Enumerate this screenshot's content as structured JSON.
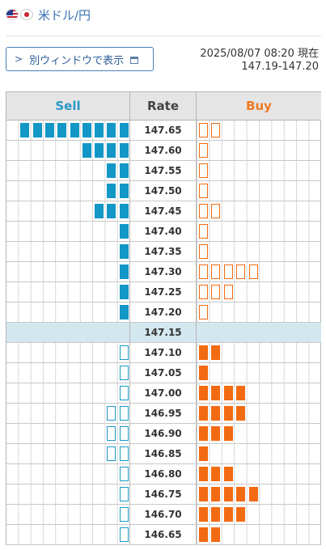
{
  "header": {
    "pair": "米ドル/円",
    "flags": [
      "us-flag-icon",
      "jp-flag-icon"
    ]
  },
  "toolbar": {
    "open_window_label": "別ウィンドウで表示"
  },
  "quote": {
    "timestamp": "2025/08/07 08:20 現在",
    "range": "147.19-147.20"
  },
  "board": {
    "headers": {
      "sell": "Sell",
      "rate": "Rate",
      "buy": "Buy"
    },
    "colors": {
      "sell": "#1297c6",
      "buy": "#f26a12",
      "current_row": "#d3e7ef"
    },
    "rows": [
      {
        "rate": "147.65",
        "sell": 9,
        "sell_style": "filled",
        "buy": 2,
        "buy_style": "outline"
      },
      {
        "rate": "147.60",
        "sell": 4,
        "sell_style": "filled",
        "buy": 1,
        "buy_style": "outline"
      },
      {
        "rate": "147.55",
        "sell": 2,
        "sell_style": "filled",
        "buy": 1,
        "buy_style": "outline"
      },
      {
        "rate": "147.50",
        "sell": 2,
        "sell_style": "filled",
        "buy": 1,
        "buy_style": "outline"
      },
      {
        "rate": "147.45",
        "sell": 3,
        "sell_style": "filled",
        "buy": 2,
        "buy_style": "outline"
      },
      {
        "rate": "147.40",
        "sell": 1,
        "sell_style": "filled",
        "buy": 1,
        "buy_style": "outline"
      },
      {
        "rate": "147.35",
        "sell": 1,
        "sell_style": "filled",
        "buy": 1,
        "buy_style": "outline"
      },
      {
        "rate": "147.30",
        "sell": 1,
        "sell_style": "filled",
        "buy": 5,
        "buy_style": "outline"
      },
      {
        "rate": "147.25",
        "sell": 1,
        "sell_style": "filled",
        "buy": 3,
        "buy_style": "outline"
      },
      {
        "rate": "147.20",
        "sell": 1,
        "sell_style": "filled",
        "buy": 1,
        "buy_style": "outline"
      },
      {
        "rate": "147.15",
        "sell": 0,
        "sell_style": "filled",
        "buy": 0,
        "buy_style": "outline",
        "current": true
      },
      {
        "rate": "147.10",
        "sell": 1,
        "sell_style": "outline",
        "buy": 2,
        "buy_style": "filled"
      },
      {
        "rate": "147.05",
        "sell": 1,
        "sell_style": "outline",
        "buy": 1,
        "buy_style": "filled"
      },
      {
        "rate": "147.00",
        "sell": 1,
        "sell_style": "outline",
        "buy": 4,
        "buy_style": "filled"
      },
      {
        "rate": "146.95",
        "sell": 2,
        "sell_style": "outline",
        "buy": 4,
        "buy_style": "filled"
      },
      {
        "rate": "146.90",
        "sell": 2,
        "sell_style": "outline",
        "buy": 3,
        "buy_style": "filled"
      },
      {
        "rate": "146.85",
        "sell": 2,
        "sell_style": "outline",
        "buy": 1,
        "buy_style": "filled"
      },
      {
        "rate": "146.80",
        "sell": 1,
        "sell_style": "outline",
        "buy": 3,
        "buy_style": "filled"
      },
      {
        "rate": "146.75",
        "sell": 1,
        "sell_style": "outline",
        "buy": 5,
        "buy_style": "filled"
      },
      {
        "rate": "146.70",
        "sell": 1,
        "sell_style": "outline",
        "buy": 4,
        "buy_style": "filled"
      },
      {
        "rate": "146.65",
        "sell": 1,
        "sell_style": "outline",
        "buy": 2,
        "buy_style": "filled"
      }
    ]
  }
}
